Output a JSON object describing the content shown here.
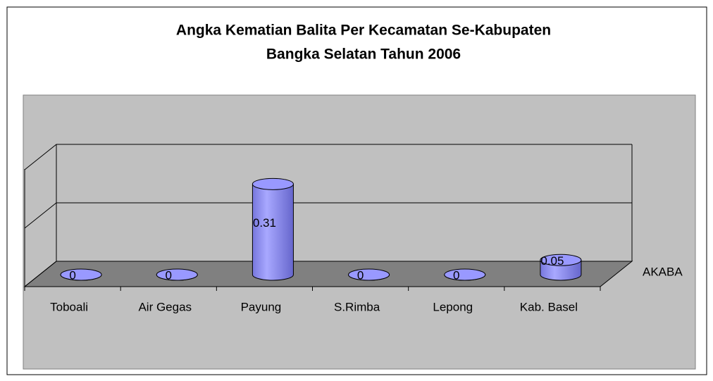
{
  "chart_data": {
    "type": "bar",
    "title": "Angka Kematian Balita Per Kecamatan Se-Kabupaten",
    "subtitle": "Bangka Selatan Tahun 2006",
    "categories": [
      "Toboali",
      "Air Gegas",
      "Payung",
      "S.Rimba",
      "Lepong",
      "Kab. Basel"
    ],
    "series": [
      {
        "name": "AKABA",
        "color": "#9999ff",
        "values": [
          0,
          0,
          0.31,
          0,
          0,
          0.05
        ]
      }
    ],
    "ylim": [
      0,
      0.4
    ],
    "yticks": [
      0,
      0.2,
      0.4
    ],
    "grid": true,
    "legend": "right"
  }
}
